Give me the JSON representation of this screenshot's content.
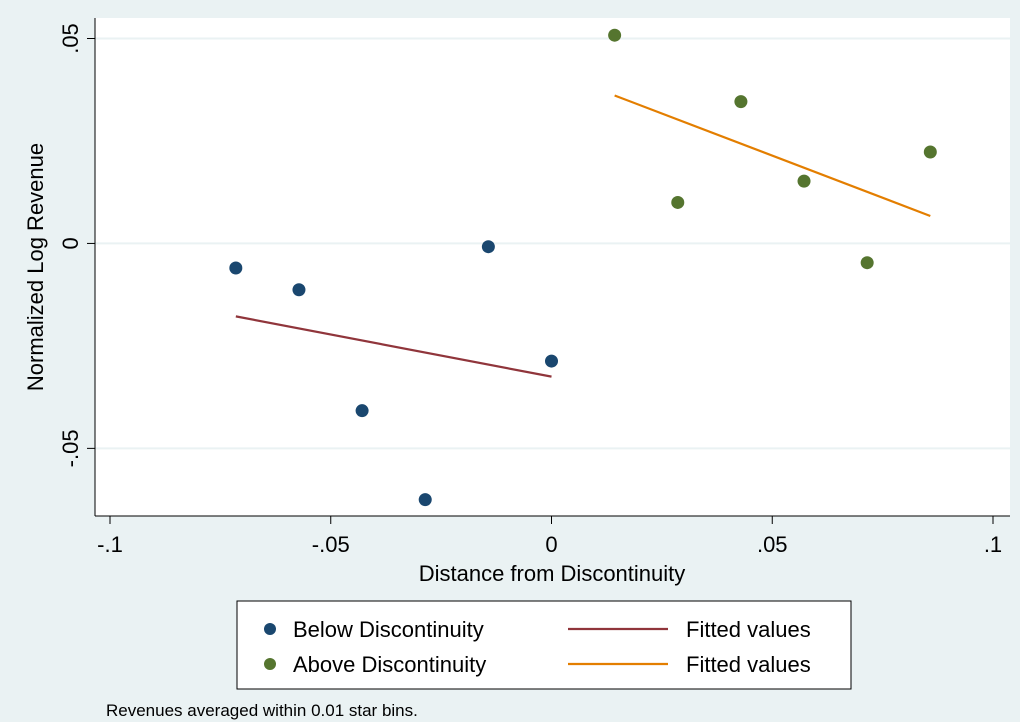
{
  "chart_data": {
    "type": "scatter",
    "title": "",
    "xlabel": "Distance from Discontinuity",
    "ylabel": "Normalized Log Revenue",
    "xlim": [
      -0.1,
      0.1
    ],
    "ylim": [
      -0.0665,
      0.055
    ],
    "xticks": [
      -0.1,
      -0.05,
      0,
      0.05,
      0.1
    ],
    "xtick_labels": [
      "-.1",
      "-.05",
      "0",
      ".05",
      ".1"
    ],
    "yticks": [
      -0.05,
      0,
      0.05
    ],
    "ytick_labels": [
      "-.05",
      "0",
      ".05"
    ],
    "grid": "horizontal",
    "legend_position": "bottom",
    "note": "Revenues averaged within 0.01 star bins.",
    "series": [
      {
        "name": "Below Discontinuity",
        "kind": "scatter",
        "color": "#1a476f",
        "x": [
          -0.0715,
          -0.0572,
          -0.0429,
          -0.0286,
          -0.0143,
          0.0
        ],
        "y": [
          -0.006,
          -0.0113,
          -0.0408,
          -0.0625,
          -0.0008,
          -0.0287
        ]
      },
      {
        "name": "Fitted values",
        "kind": "line",
        "color": "#90353b",
        "x": [
          -0.0715,
          0.0
        ],
        "y": [
          -0.0178,
          -0.0325
        ]
      },
      {
        "name": "Above Discontinuity",
        "kind": "scatter",
        "color": "#55752f",
        "x": [
          0.0143,
          0.0286,
          0.0429,
          0.0572,
          0.0715,
          0.0858
        ],
        "y": [
          0.0508,
          0.01,
          0.0346,
          0.0152,
          -0.0047,
          0.0223
        ]
      },
      {
        "name": "Fitted values",
        "kind": "line",
        "color": "#e37e00",
        "x": [
          0.0143,
          0.0858
        ],
        "y": [
          0.0361,
          0.0067
        ]
      }
    ]
  }
}
